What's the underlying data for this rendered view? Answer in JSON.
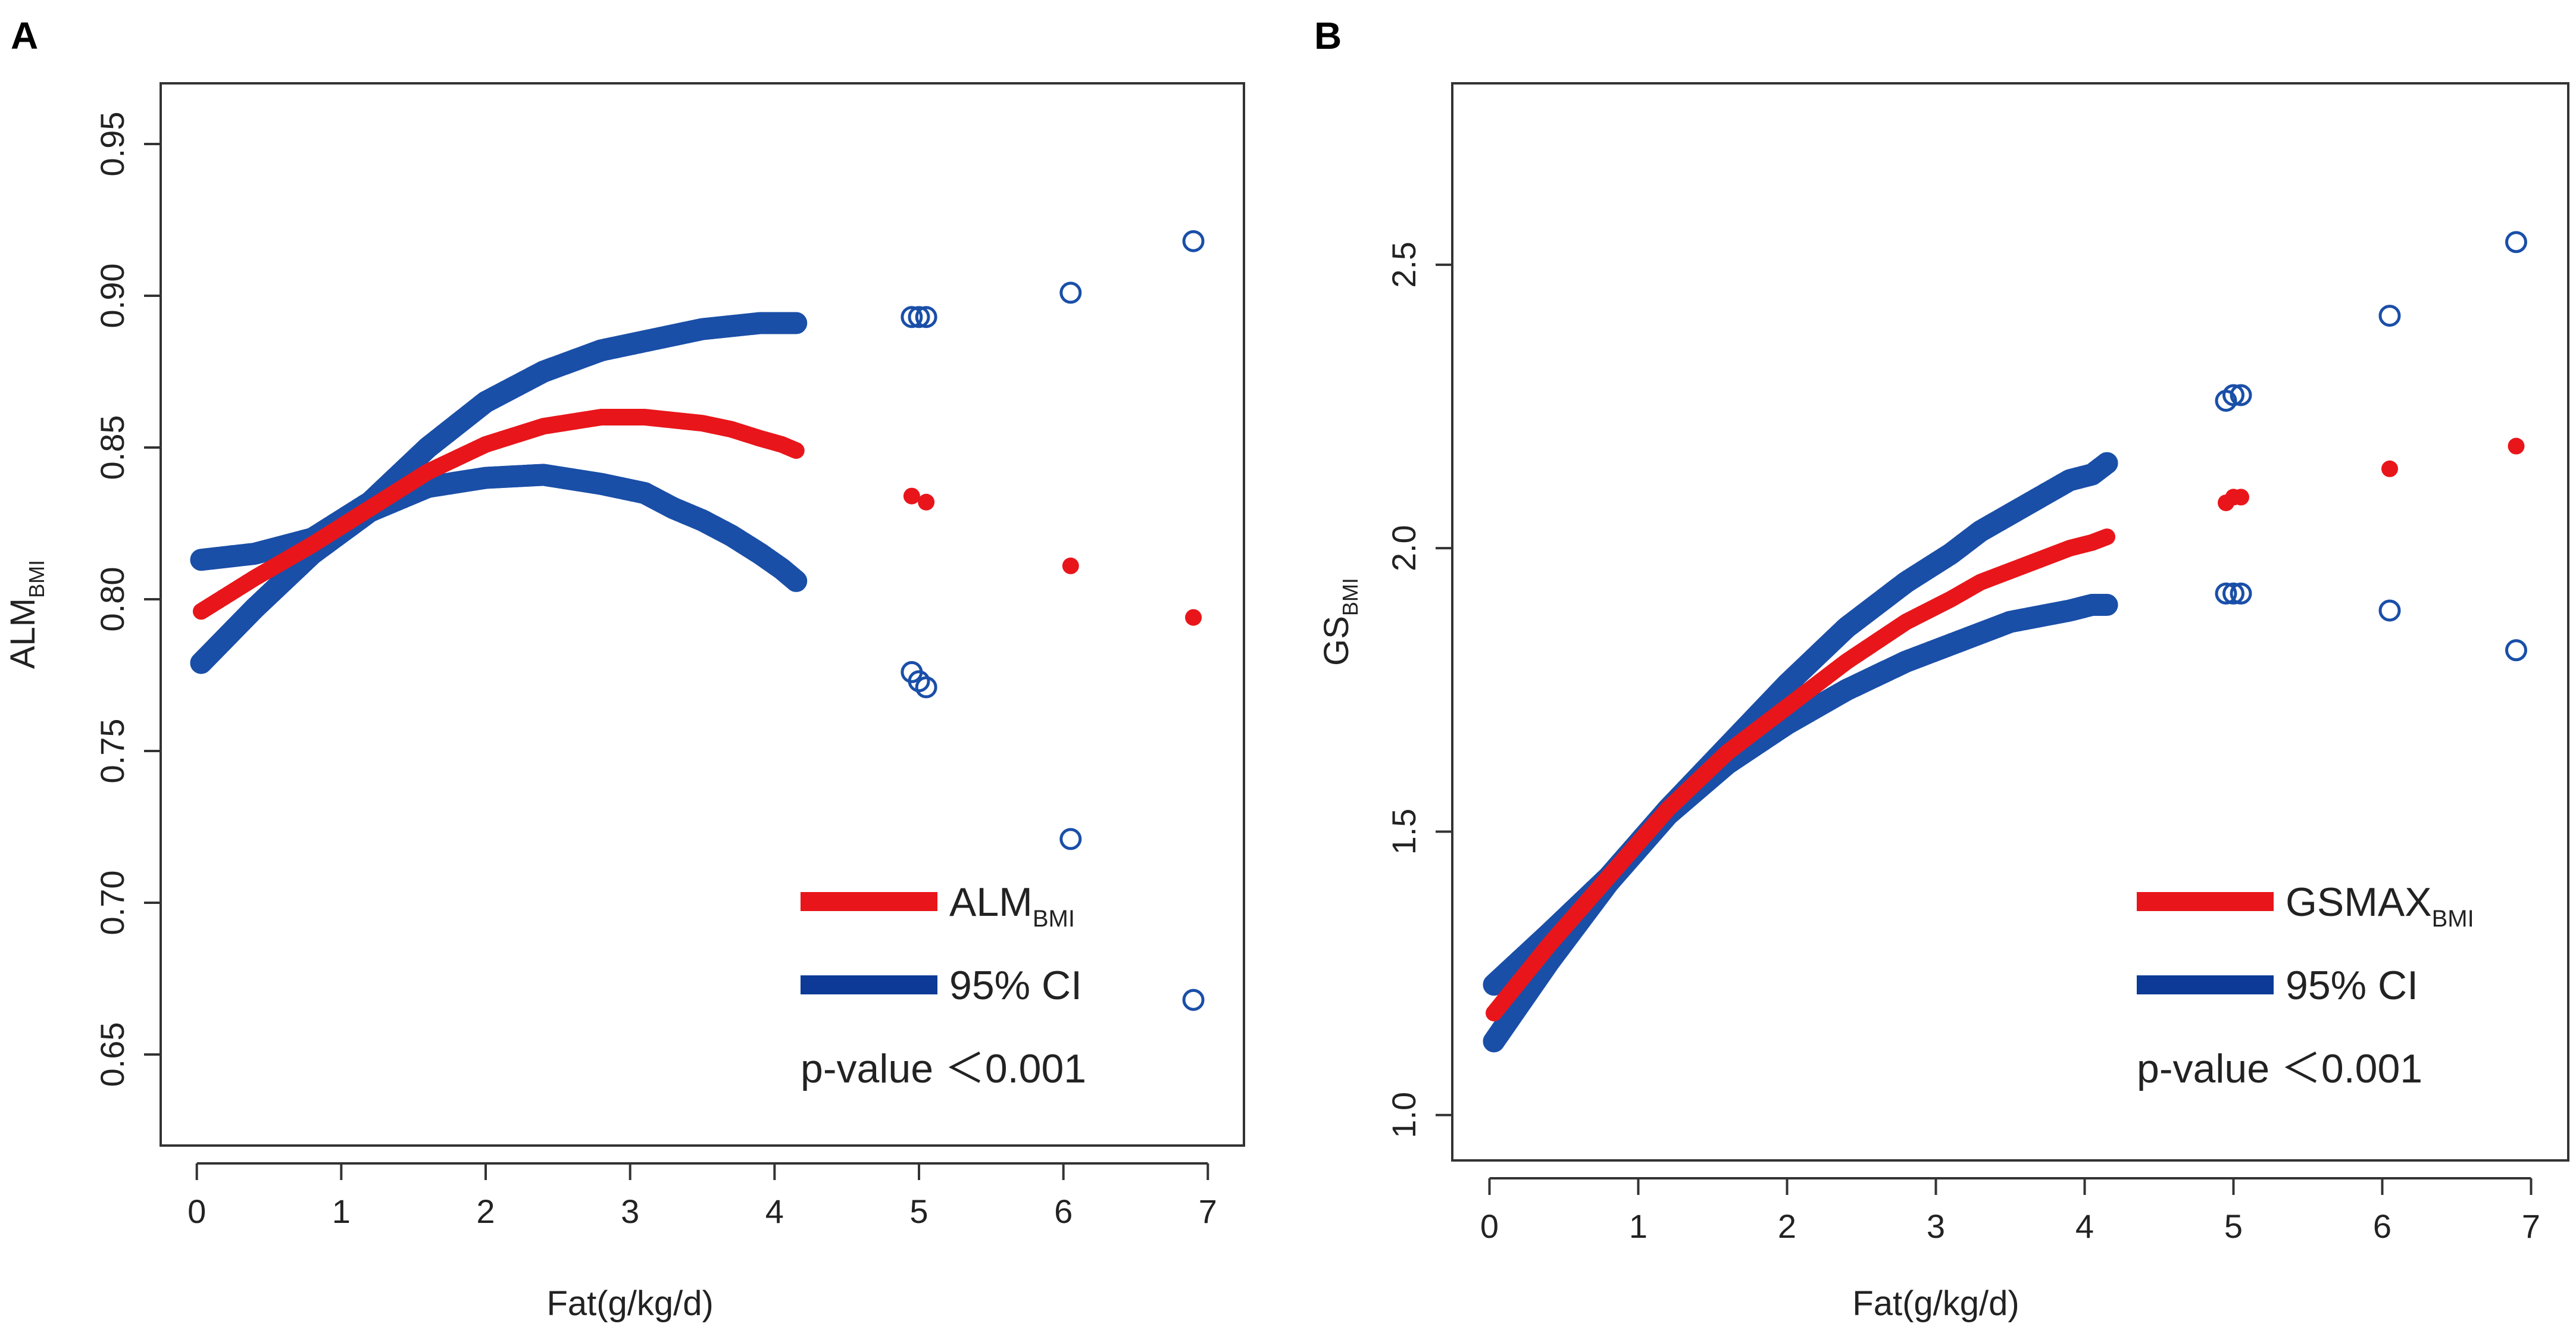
{
  "chart_data": [
    {
      "panel_label": "A",
      "type": "scatter",
      "xlabel": "Fat(g/kg/d)",
      "ylabel_main": "ALM",
      "ylabel_sub": "BMI",
      "xlim": [
        -0.25,
        7.25
      ],
      "ylim": [
        0.62,
        0.97
      ],
      "x_ticks": [
        0,
        1,
        2,
        3,
        4,
        5,
        6,
        7
      ],
      "y_ticks": [
        0.65,
        0.7,
        0.75,
        0.8,
        0.85,
        0.9,
        0.95
      ],
      "y_tick_labels": [
        "0.65",
        "0.70",
        "0.75",
        "0.80",
        "0.85",
        "0.90",
        "0.95"
      ],
      "grid": false,
      "legend_position": "bottom-right",
      "legend": [
        {
          "label": "ALM",
          "sub": "BMI",
          "color": "#e8161b"
        },
        {
          "label": "95% CI",
          "sub": "",
          "color": "#0c3a96"
        }
      ],
      "annotation": "p-value ＜0.001",
      "series": [
        {
          "name": "ALM_BMI",
          "role": "estimate",
          "marker": "filled",
          "color": "#e8161b",
          "x": [
            0.03,
            0.4,
            0.8,
            1.2,
            1.6,
            2.0,
            2.4,
            2.8,
            3.1,
            3.3,
            3.5,
            3.7,
            3.9,
            4.05,
            4.15,
            4.95,
            5.05,
            6.05,
            6.9
          ],
          "y": [
            0.796,
            0.807,
            0.818,
            0.83,
            0.842,
            0.851,
            0.857,
            0.86,
            0.86,
            0.859,
            0.858,
            0.856,
            0.853,
            0.851,
            0.849,
            0.834,
            0.832,
            0.811,
            0.794
          ]
        },
        {
          "name": "95% CI upper",
          "role": "ci",
          "marker": "open",
          "color": "#1a4fa8",
          "x": [
            0.03,
            0.4,
            0.8,
            1.2,
            1.6,
            2.0,
            2.4,
            2.8,
            3.1,
            3.3,
            3.5,
            3.7,
            3.9,
            4.05,
            4.15,
            4.95,
            5.0,
            5.05,
            6.05,
            6.9
          ],
          "y": [
            0.813,
            0.815,
            0.82,
            0.832,
            0.85,
            0.865,
            0.875,
            0.882,
            0.885,
            0.887,
            0.889,
            0.89,
            0.891,
            0.891,
            0.891,
            0.893,
            0.893,
            0.893,
            0.901,
            0.918
          ]
        },
        {
          "name": "95% CI lower",
          "role": "ci",
          "marker": "open",
          "color": "#1a4fa8",
          "x": [
            0.03,
            0.4,
            0.8,
            1.2,
            1.6,
            2.0,
            2.4,
            2.8,
            3.1,
            3.3,
            3.5,
            3.7,
            3.9,
            4.05,
            4.15,
            4.95,
            5.0,
            5.05,
            6.05,
            6.9
          ],
          "y": [
            0.779,
            0.797,
            0.815,
            0.829,
            0.837,
            0.84,
            0.841,
            0.838,
            0.835,
            0.83,
            0.826,
            0.821,
            0.815,
            0.81,
            0.806,
            0.776,
            0.773,
            0.771,
            0.721,
            0.668
          ]
        }
      ]
    },
    {
      "panel_label": "B",
      "type": "scatter",
      "xlabel": "Fat(g/kg/d)",
      "ylabel_main": "GS",
      "ylabel_sub": "BMI",
      "xlim": [
        -0.25,
        7.25
      ],
      "ylim": [
        0.92,
        2.82
      ],
      "x_ticks": [
        0,
        1,
        2,
        3,
        4,
        5,
        6,
        7
      ],
      "y_ticks": [
        1.0,
        1.5,
        2.0,
        2.5
      ],
      "y_tick_labels": [
        "1.0",
        "1.5",
        "2.0",
        "2.5"
      ],
      "grid": false,
      "legend_position": "bottom-right",
      "legend": [
        {
          "label": "GSMAX",
          "sub": "BMI",
          "color": "#e8161b"
        },
        {
          "label": "95% CI",
          "sub": "",
          "color": "#0c3a96"
        }
      ],
      "annotation": "p-value ＜0.001",
      "series": [
        {
          "name": "GSMAX_BMI",
          "role": "estimate",
          "marker": "filled",
          "color": "#e8161b",
          "x": [
            0.03,
            0.4,
            0.8,
            1.2,
            1.6,
            2.0,
            2.4,
            2.8,
            3.1,
            3.3,
            3.5,
            3.7,
            3.9,
            4.05,
            4.15,
            4.95,
            5.0,
            5.05,
            6.05,
            6.9
          ],
          "y": [
            1.18,
            1.3,
            1.42,
            1.54,
            1.64,
            1.72,
            1.8,
            1.87,
            1.91,
            1.94,
            1.96,
            1.98,
            2.0,
            2.01,
            2.02,
            2.08,
            2.09,
            2.09,
            2.14,
            2.18
          ]
        },
        {
          "name": "95% CI upper",
          "role": "ci",
          "marker": "open",
          "color": "#1a4fa8",
          "x": [
            0.03,
            0.4,
            0.8,
            1.2,
            1.6,
            2.0,
            2.4,
            2.8,
            3.1,
            3.3,
            3.5,
            3.7,
            3.9,
            4.05,
            4.15,
            4.95,
            5.0,
            5.05,
            6.05,
            6.9
          ],
          "y": [
            1.23,
            1.32,
            1.42,
            1.54,
            1.65,
            1.76,
            1.86,
            1.94,
            1.99,
            2.03,
            2.06,
            2.09,
            2.12,
            2.13,
            2.15,
            2.26,
            2.27,
            2.27,
            2.41,
            2.54
          ]
        },
        {
          "name": "95% CI lower",
          "role": "ci",
          "marker": "open",
          "color": "#1a4fa8",
          "x": [
            0.03,
            0.4,
            0.8,
            1.2,
            1.6,
            2.0,
            2.4,
            2.8,
            3.1,
            3.3,
            3.5,
            3.7,
            3.9,
            4.05,
            4.15,
            4.95,
            5.0,
            5.05,
            6.05,
            6.9
          ],
          "y": [
            1.13,
            1.27,
            1.41,
            1.53,
            1.62,
            1.69,
            1.75,
            1.8,
            1.83,
            1.85,
            1.87,
            1.88,
            1.89,
            1.9,
            1.9,
            1.92,
            1.92,
            1.92,
            1.89,
            1.82
          ]
        }
      ]
    }
  ]
}
